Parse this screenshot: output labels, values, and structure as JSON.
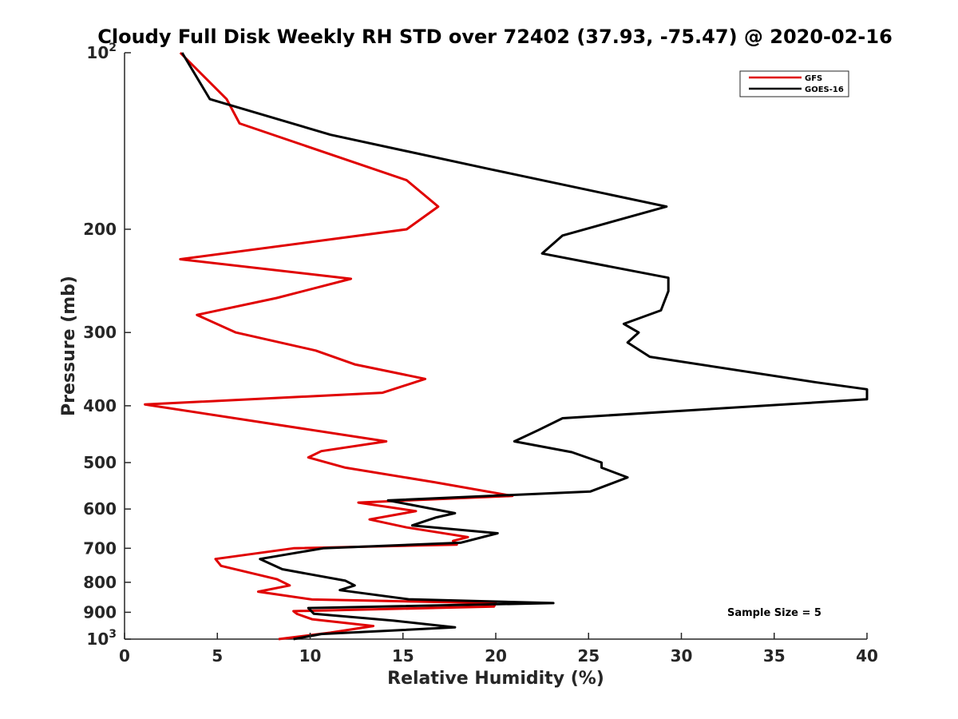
{
  "chart_data": {
    "type": "line",
    "title": "Cloudy Full Disk Weekly RH STD over 72402 (37.93, -75.47) @ 2020-02-16",
    "xlabel": "Relative Humidity (%)",
    "ylabel": "Pressure (mb)",
    "xlim": [
      0,
      40
    ],
    "ylim": [
      100,
      1000
    ],
    "y_scale": "log",
    "y_reversed": true,
    "grid": false,
    "legend_position": "top-right",
    "annotation": "Sample Size = 5",
    "x_ticks": [
      "0",
      "5",
      "10",
      "15",
      "20",
      "25",
      "30",
      "35",
      "40"
    ],
    "x_tick_values": [
      0,
      5,
      10,
      15,
      20,
      25,
      30,
      35,
      40
    ],
    "y_ticks": [
      {
        "value": 100,
        "base": "10",
        "exp": "2"
      },
      {
        "value": 200,
        "label": "200"
      },
      {
        "value": 300,
        "label": "300"
      },
      {
        "value": 400,
        "label": "400"
      },
      {
        "value": 500,
        "label": "500"
      },
      {
        "value": 600,
        "label": "600"
      },
      {
        "value": 700,
        "label": "700"
      },
      {
        "value": 800,
        "label": "800"
      },
      {
        "value": 900,
        "label": "900"
      },
      {
        "value": 1000,
        "base": "10",
        "exp": "3"
      }
    ],
    "series": [
      {
        "name": "GFS",
        "color": "#e00000",
        "x": [
          3.0,
          5.5,
          6.2,
          15.2,
          16.9,
          15.2,
          3.0,
          12.2,
          8.2,
          3.9,
          6.0,
          10.3,
          12.4,
          16.2,
          13.9,
          1.1,
          14.1,
          10.6,
          9.9,
          11.9,
          16.7,
          20.9,
          12.6,
          15.7,
          13.2,
          15.2,
          18.5,
          17.7,
          17.9,
          9.1,
          4.9,
          5.2,
          8.2,
          8.9,
          7.2,
          10.1,
          20.0,
          19.9,
          9.1,
          9.3,
          10.1,
          13.4,
          11.1,
          8.3
        ],
        "y": [
          100,
          120,
          132,
          165,
          183,
          200,
          225,
          243,
          262,
          280,
          300,
          322,
          340,
          360,
          380,
          398,
          460,
          478,
          490,
          510,
          540,
          570,
          585,
          605,
          625,
          645,
          670,
          680,
          690,
          700,
          730,
          750,
          790,
          810,
          830,
          856,
          868,
          880,
          896,
          906,
          925,
          950,
          975,
          1000
        ]
      },
      {
        "name": "GOES-16",
        "color": "#000000",
        "x": [
          3.1,
          4.6,
          11.1,
          19.7,
          29.2,
          23.6,
          22.5,
          29.3,
          29.3,
          28.9,
          26.9,
          27.7,
          27.1,
          28.3,
          37.3,
          40.0,
          40.0,
          23.6,
          22.3,
          21.0,
          24.1,
          25.7,
          25.7,
          27.1,
          25.1,
          14.2,
          17.8,
          16.8,
          15.5,
          20.1,
          18.1,
          10.7,
          7.3,
          8.5,
          11.9,
          12.4,
          11.6,
          15.3,
          23.1,
          9.9,
          10.2,
          14.5,
          17.8,
          10.6,
          9.1
        ],
        "y": [
          100,
          120,
          138,
          158,
          183,
          205,
          220,
          242,
          255,
          275,
          290,
          300,
          312,
          330,
          365,
          375,
          390,
          420,
          440,
          460,
          480,
          500,
          510,
          530,
          560,
          580,
          610,
          620,
          640,
          660,
          685,
          700,
          730,
          760,
          795,
          810,
          825,
          855,
          868,
          885,
          905,
          930,
          955,
          980,
          1000
        ]
      }
    ]
  }
}
